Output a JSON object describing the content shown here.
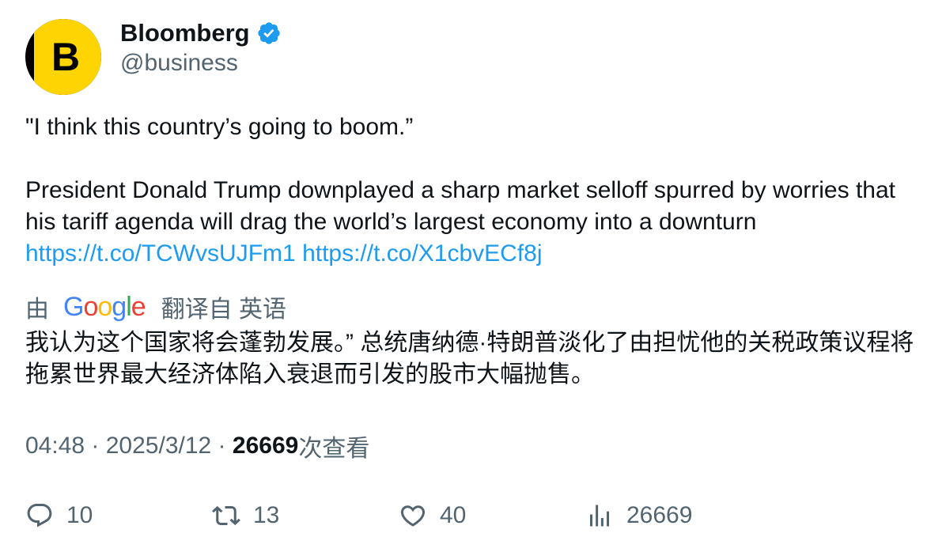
{
  "author": {
    "display_name": "Bloomberg",
    "handle": "@business",
    "avatar_letter": "B",
    "verified": true,
    "brand_color": "#ffd400"
  },
  "tweet": {
    "quote_line": "\"I think this country’s going to boom.”",
    "body": "President Donald Trump downplayed a sharp market selloff spurred by worries that his tariff agenda will drag the world’s largest economy into a downturn",
    "links": [
      "https://t.co/TCWvsUJFm1",
      "https://t.co/X1cbvECf8j"
    ],
    "link_color": "#1d9bf0"
  },
  "translation": {
    "prefix": "由",
    "provider": "Google",
    "suffix": "翻译自 英语",
    "text": "我认为这个国家将会蓬勃发展。” 总统唐纳德·特朗普淡化了由担忧他的关税政策议程将拖累世界最大经济体陷入衰退而引发的股市大幅抛售。"
  },
  "meta": {
    "time": "04:48",
    "separator": " · ",
    "date": "2025/3/12",
    "views_count": "26669",
    "views_label": "次查看"
  },
  "actions": {
    "reply": {
      "icon": "reply-icon",
      "count": "10"
    },
    "retweet": {
      "icon": "retweet-icon",
      "count": "13"
    },
    "like": {
      "icon": "heart-icon",
      "count": "40"
    },
    "views": {
      "icon": "views-chart-icon",
      "count": "26669"
    }
  }
}
